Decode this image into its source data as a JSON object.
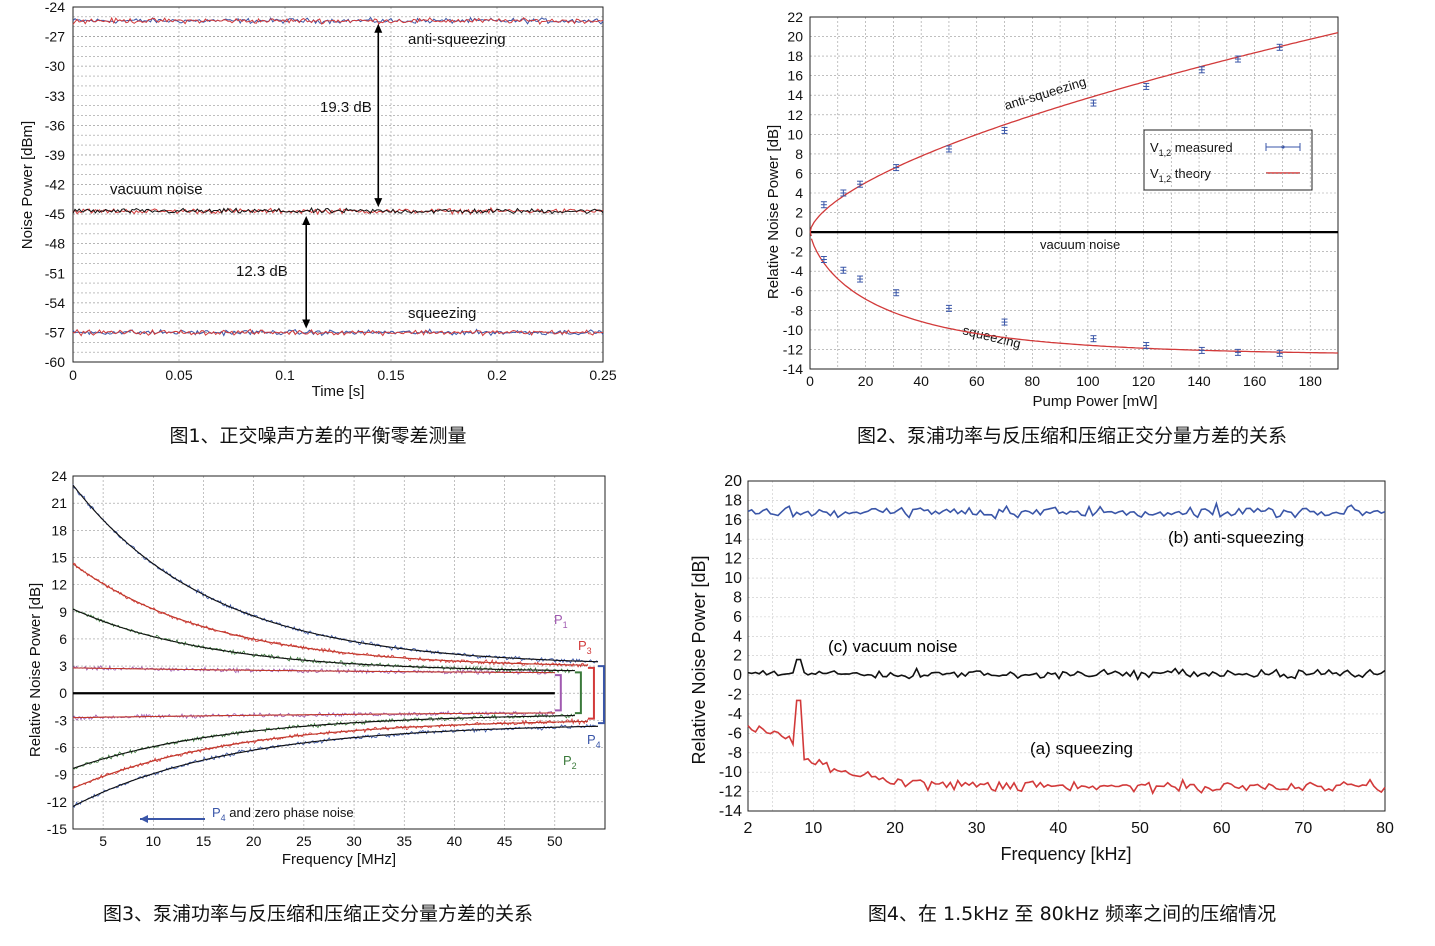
{
  "captions": {
    "fig1": "图1、正交噪声方差的平衡零差测量",
    "fig2": "图2、泵浦功率与反压缩和压缩正交分量方差的关系",
    "fig3": "图3、泵浦功率与反压缩和压缩正交分量方差的关系",
    "fig4": "图4、在 1.5kHz 至 80kHz 频率之间的压缩情况"
  },
  "colors": {
    "red": "#d23a3a",
    "blue": "#3a56a8",
    "black": "#111111",
    "green": "#3b7a3b",
    "purple": "#a05ab0",
    "darkred": "#c0392b"
  },
  "chart_data": [
    {
      "id": "fig1",
      "type": "line",
      "title": "",
      "xlabel": "Time [s]",
      "ylabel": "Noise Power [dBm]",
      "xlim": [
        0,
        0.25
      ],
      "ylim": [
        -60,
        -24
      ],
      "xticks": [
        "0",
        "0.05",
        "0.1",
        "0.15",
        "0.2",
        "0.25"
      ],
      "xtick_values": [
        0,
        0.05,
        0.1,
        0.15,
        0.2,
        0.25
      ],
      "yticks": [
        "-24",
        "-27",
        "-30",
        "-33",
        "-36",
        "-39",
        "-42",
        "-45",
        "-48",
        "-51",
        "-54",
        "-57",
        "-60"
      ],
      "ytick_values": [
        -24,
        -27,
        -30,
        -33,
        -36,
        -39,
        -42,
        -45,
        -48,
        -51,
        -54,
        -57,
        -60
      ],
      "series": [
        {
          "name": "anti-squeezing",
          "level": -25.4
        },
        {
          "name": "vacuum noise",
          "level": -44.7
        },
        {
          "name": "squeezing",
          "level": -57.0
        }
      ],
      "annotations": {
        "anti": "anti-squeezing",
        "vacuum": "vacuum noise",
        "squeezing": "squeezing",
        "gap1": "19.3 dB",
        "gap2": "12.3 dB"
      }
    },
    {
      "id": "fig2",
      "type": "scatter",
      "xlabel": "Pump Power [mW]",
      "ylabel": "Relative Noise Power [dB]",
      "xlim": [
        0,
        190
      ],
      "ylim": [
        -14,
        22
      ],
      "xticks": [
        "0",
        "20",
        "40",
        "60",
        "80",
        "100",
        "120",
        "140",
        "160",
        "180"
      ],
      "xtick_values": [
        0,
        20,
        40,
        60,
        80,
        100,
        120,
        140,
        160,
        180
      ],
      "yticks": [
        "22",
        "20",
        "18",
        "16",
        "14",
        "12",
        "10",
        "8",
        "6",
        "4",
        "2",
        "0",
        "-2",
        "-4",
        "-6",
        "-8",
        "-10",
        "-12",
        "-14"
      ],
      "ytick_values": [
        22,
        20,
        18,
        16,
        14,
        12,
        10,
        8,
        6,
        4,
        2,
        0,
        -2,
        -4,
        -6,
        -8,
        -10,
        -12,
        -14
      ],
      "legend": {
        "measured": "V",
        "measured_sub": "1,2",
        "measured_rest": " measured",
        "theory": "V",
        "theory_sub": "1,2",
        "theory_rest": " theory"
      },
      "measured_anti": {
        "x": [
          5,
          12,
          18,
          31,
          50,
          70,
          102,
          121,
          141,
          154,
          169
        ],
        "y": [
          2.8,
          4.0,
          4.9,
          6.6,
          8.5,
          10.4,
          13.2,
          14.9,
          16.6,
          17.7,
          18.9
        ]
      },
      "measured_sq": {
        "x": [
          5,
          12,
          18,
          31,
          50,
          70,
          102,
          121,
          141,
          154,
          169
        ],
        "y": [
          -2.8,
          -3.9,
          -4.8,
          -6.2,
          -7.8,
          -9.2,
          -10.9,
          -11.6,
          -12.1,
          -12.3,
          -12.4
        ]
      },
      "labels": {
        "anti": "anti-squeezing",
        "vacuum": "vacuum noise",
        "squeezing": "squeezing"
      }
    },
    {
      "id": "fig3",
      "type": "line",
      "xlabel": "Frequency [MHz]",
      "ylabel": "Relative Noise Power [dB]",
      "xlim": [
        2,
        55
      ],
      "ylim": [
        -15,
        24
      ],
      "xticks": [
        "5",
        "10",
        "15",
        "20",
        "25",
        "30",
        "35",
        "40",
        "45",
        "50"
      ],
      "xtick_values": [
        5,
        10,
        15,
        20,
        25,
        30,
        35,
        40,
        45,
        50
      ],
      "yticks": [
        "24",
        "21",
        "18",
        "15",
        "12",
        "9",
        "6",
        "3",
        "0",
        "-3",
        "-6",
        "-9",
        "-12",
        "-15"
      ],
      "ytick_values": [
        24,
        21,
        18,
        15,
        12,
        9,
        6,
        3,
        0,
        -3,
        -6,
        -9,
        -12,
        -15
      ],
      "series": [
        {
          "name": "P1",
          "sub": "1",
          "anti_start": 2.8,
          "anti_end": 2.0,
          "sq_start": -2.7,
          "sq_end": -1.9
        },
        {
          "name": "P2",
          "sub": "2",
          "anti_start": 9.3,
          "anti_end": 2.3,
          "sq_start": -8.3,
          "sq_end": -2.2
        },
        {
          "name": "P3",
          "sub": "3",
          "anti_start": 14.3,
          "anti_end": 2.8,
          "sq_start": -10.5,
          "sq_end": -2.8
        },
        {
          "name": "P4",
          "sub": "4",
          "anti_start": 23.0,
          "anti_end": 3.0,
          "sq_start": -12.5,
          "sq_end": -3.3
        }
      ],
      "labels": {
        "p": "P",
        "p4note_pre": "P",
        "p4note_sub": "4",
        "p4note": " and zero phase noise"
      }
    },
    {
      "id": "fig4",
      "type": "line",
      "xlabel": "Frequency [kHz]",
      "ylabel": "Relative Noise Power [dB]",
      "xlim": [
        2,
        80
      ],
      "ylim": [
        -14,
        20
      ],
      "xticks": [
        "2",
        "10",
        "20",
        "30",
        "40",
        "50",
        "60",
        "70",
        "80"
      ],
      "xtick_values": [
        2,
        10,
        20,
        30,
        40,
        50,
        60,
        70,
        80
      ],
      "yticks": [
        "20",
        "18",
        "16",
        "14",
        "12",
        "10",
        "8",
        "6",
        "4",
        "2",
        "0",
        "-2",
        "-4",
        "-6",
        "-8",
        "-10",
        "-12",
        "-14"
      ],
      "ytick_values": [
        20,
        18,
        16,
        14,
        12,
        10,
        8,
        6,
        4,
        2,
        0,
        -2,
        -4,
        -6,
        -8,
        -10,
        -12,
        -14
      ],
      "series": [
        {
          "name": "(b) anti-squeezing",
          "level": 16.8
        },
        {
          "name": "(c) vacuum noise",
          "level": 0.0
        },
        {
          "name": "(a) squeezing",
          "level": -11.2
        }
      ]
    }
  ]
}
